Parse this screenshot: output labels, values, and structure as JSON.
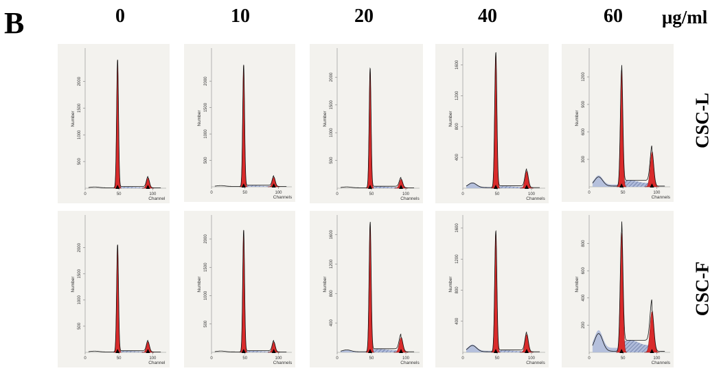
{
  "figure": {
    "panel_letter": "B",
    "unit": "μg/ml",
    "columns": [
      "0",
      "10",
      "20",
      "40",
      "60"
    ],
    "rows": [
      "CSC-L",
      "CSC-F"
    ],
    "x_axis_label_singular": "Channel",
    "x_axis_label_plural": "Channels",
    "y_axis_label": "Number"
  },
  "colors": {
    "panel_bg": "#f3f2ee",
    "peak_fill": "#d92b2b",
    "sphase_fill": "#aebad9",
    "outline": "#111111"
  },
  "chart_data": [
    {
      "type": "area",
      "title": "CSC-L 0 μg/ml",
      "xlabel": "Channel",
      "ylabel": "Number",
      "xlim": [
        0,
        120
      ],
      "ylim": [
        0,
        2600
      ],
      "yticks": [
        500,
        1000,
        1500,
        2000
      ],
      "xticks": [
        0,
        50,
        100
      ],
      "g1": {
        "pos": 48,
        "height": 2400,
        "width": 1.4
      },
      "g2": {
        "pos": 93,
        "height": 190,
        "width": 2.2
      },
      "sphase": 25,
      "debris": 15,
      "markers": [
        48,
        93
      ]
    },
    {
      "type": "area",
      "title": "CSC-L 10 μg/ml",
      "xlabel": "Channel",
      "ylabel": "Number",
      "xlim": [
        0,
        120
      ],
      "ylim": [
        0,
        2600
      ],
      "yticks": [
        500,
        1000,
        1500,
        2000
      ],
      "xticks": [
        0,
        50,
        100
      ],
      "g1": {
        "pos": 48,
        "height": 2300,
        "width": 1.4
      },
      "g2": {
        "pos": 93,
        "height": 180,
        "width": 2.2
      },
      "sphase": 25,
      "debris": 15,
      "markers": [
        48,
        93
      ]
    },
    {
      "type": "area",
      "title": "CSC-L 20 μg/ml",
      "xlabel": "Channel",
      "ylabel": "Number",
      "xlim": [
        0,
        120
      ],
      "ylim": [
        0,
        2500
      ],
      "yticks": [
        500,
        1000,
        1500,
        2000
      ],
      "xticks": [
        0,
        50,
        100
      ],
      "g1": {
        "pos": 48,
        "height": 2150,
        "width": 1.4
      },
      "g2": {
        "pos": 93,
        "height": 160,
        "width": 2.4
      },
      "sphase": 30,
      "debris": 15,
      "markers": [
        48,
        93
      ]
    },
    {
      "type": "area",
      "title": "CSC-L 40 μg/ml",
      "xlabel": "Channel",
      "ylabel": "Number",
      "xlim": [
        0,
        120
      ],
      "ylim": [
        0,
        1800
      ],
      "yticks": [
        400,
        800,
        1200,
        1600
      ],
      "xticks": [
        0,
        50,
        100
      ],
      "g1": {
        "pos": 48,
        "height": 1750,
        "width": 1.6
      },
      "g2": {
        "pos": 93,
        "height": 220,
        "width": 2.4
      },
      "sphase": 25,
      "debris": 60,
      "markers": [
        48,
        93
      ]
    },
    {
      "type": "area",
      "title": "CSC-L 60 μg/ml",
      "xlabel": "Channel",
      "ylabel": "Number",
      "xlim": [
        0,
        120
      ],
      "ylim": [
        0,
        1500
      ],
      "yticks": [
        300,
        600,
        900,
        1200
      ],
      "xticks": [
        0,
        50,
        100
      ],
      "g1": {
        "pos": 48,
        "height": 1270,
        "width": 1.8
      },
      "g2": {
        "pos": 93,
        "height": 380,
        "width": 2.6
      },
      "sphase": 70,
      "debris": 100,
      "markers": [
        48,
        93
      ]
    },
    {
      "type": "area",
      "title": "CSC-F 0 μg/ml",
      "xlabel": "Channel",
      "ylabel": "Number",
      "xlim": [
        0,
        120
      ],
      "ylim": [
        0,
        2600
      ],
      "yticks": [
        500,
        1000,
        1500,
        2000
      ],
      "xticks": [
        0,
        50,
        100
      ],
      "g1": {
        "pos": 48,
        "height": 2050,
        "width": 1.4
      },
      "g2": {
        "pos": 93,
        "height": 200,
        "width": 2.2
      },
      "sphase": 25,
      "debris": 15,
      "markers": [
        48,
        93
      ]
    },
    {
      "type": "area",
      "title": "CSC-F 10 μg/ml",
      "xlabel": "Channel",
      "ylabel": "Number",
      "xlim": [
        0,
        120
      ],
      "ylim": [
        0,
        2400
      ],
      "yticks": [
        500,
        1000,
        1500,
        2000
      ],
      "xticks": [
        0,
        50,
        100
      ],
      "g1": {
        "pos": 48,
        "height": 2150,
        "width": 1.4
      },
      "g2": {
        "pos": 93,
        "height": 180,
        "width": 2.2
      },
      "sphase": 25,
      "debris": 15,
      "markers": [
        48,
        93
      ]
    },
    {
      "type": "area",
      "title": "CSC-F 20 μg/ml",
      "xlabel": "Channel",
      "ylabel": "Number",
      "xlim": [
        0,
        120
      ],
      "ylim": [
        0,
        1850
      ],
      "yticks": [
        400,
        800,
        1200,
        1600
      ],
      "xticks": [
        0,
        50,
        100
      ],
      "g1": {
        "pos": 48,
        "height": 1750,
        "width": 1.5
      },
      "g2": {
        "pos": 93,
        "height": 200,
        "width": 2.6
      },
      "sphase": 45,
      "debris": 25,
      "markers": [
        48,
        93
      ]
    },
    {
      "type": "area",
      "title": "CSC-F 40 μg/ml",
      "xlabel": "Channel",
      "ylabel": "Number",
      "xlim": [
        0,
        120
      ],
      "ylim": [
        0,
        1750
      ],
      "yticks": [
        400,
        800,
        1200,
        1600
      ],
      "xticks": [
        0,
        50,
        100
      ],
      "g1": {
        "pos": 48,
        "height": 1550,
        "width": 1.6
      },
      "g2": {
        "pos": 93,
        "height": 230,
        "width": 2.4
      },
      "sphase": 25,
      "debris": 80,
      "markers": [
        48,
        93
      ]
    },
    {
      "type": "area",
      "title": "CSC-F 60 μg/ml",
      "xlabel": "Channel",
      "ylabel": "Number",
      "xlim": [
        0,
        120
      ],
      "ylim": [
        0,
        1000
      ],
      "yticks": [
        200,
        400,
        600,
        800
      ],
      "xticks": [
        0,
        50,
        100
      ],
      "g1": {
        "pos": 48,
        "height": 880,
        "width": 2.0
      },
      "g2": {
        "pos": 93,
        "height": 300,
        "width": 2.8
      },
      "sphase": 90,
      "debris": 130,
      "markers": [
        48,
        93
      ]
    }
  ]
}
